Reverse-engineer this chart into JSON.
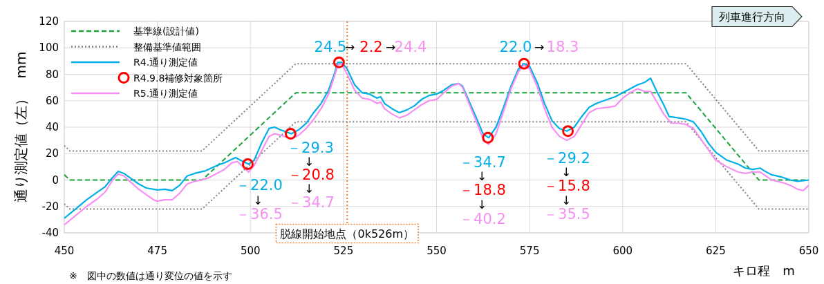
{
  "chart_data": {
    "type": "line",
    "ylabel": "通り測定値（左）　mm",
    "xlabel": "キロ程　m",
    "xlim": [
      450,
      650
    ],
    "xticks": [
      450,
      475,
      500,
      525,
      550,
      575,
      600,
      625,
      650
    ],
    "ylim": [
      -40,
      120
    ],
    "yticks": [
      -40,
      -20,
      0,
      20,
      40,
      60,
      80,
      100,
      120
    ],
    "grid": true,
    "legend": "top left",
    "series": [
      {
        "name": "基準線(設計値)",
        "type": "line",
        "color": "#1aa33a",
        "line_style": "dashed",
        "x": [
          450,
          451.5,
          487,
          512.2,
          617,
          636.6,
          650
        ],
        "values": [
          4,
          0,
          0,
          66,
          66,
          0,
          0
        ]
      },
      {
        "name": "整備基準値範囲",
        "type": "line",
        "color": "#808080",
        "line_style": "dotted",
        "x": [
          450,
          451.5,
          487,
          512.2,
          617,
          636.6,
          650
        ],
        "values": [
          26,
          22,
          22,
          88,
          88,
          22,
          22
        ]
      },
      {
        "type": "line",
        "color": "#808080",
        "line_style": "dotted",
        "x": [
          450,
          451.5,
          487,
          512.2,
          617,
          636.6,
          650
        ],
        "values": [
          -18,
          -22,
          -22,
          44,
          44,
          -22,
          -22
        ]
      },
      {
        "name": "R4.通り測定値",
        "type": "line",
        "color": "#00aee8",
        "line_style": "solid",
        "x": [
          450,
          453,
          456,
          459,
          461,
          463,
          464.5,
          466,
          468,
          470,
          472,
          475,
          477,
          479,
          481,
          483,
          485,
          488,
          491,
          493,
          496,
          498,
          499.5,
          501,
          503,
          505,
          506.5,
          508,
          510,
          511,
          513,
          515,
          517,
          519,
          521,
          522.5,
          523.5,
          524.5,
          526,
          528,
          530,
          532,
          534,
          535,
          536,
          538,
          540,
          542,
          544,
          546,
          548,
          550,
          552,
          554,
          556,
          557,
          559,
          561,
          562.5,
          564,
          566,
          568,
          570,
          572,
          573.5,
          575,
          577,
          579,
          581,
          583,
          585,
          587,
          589,
          591,
          593,
          596,
          598,
          600,
          602,
          604,
          606,
          607.5,
          609,
          611,
          612.5,
          615,
          617,
          619,
          621,
          623,
          625,
          628,
          631,
          633,
          635,
          637,
          638,
          640,
          643,
          645,
          647,
          650
        ],
        "values": [
          -29,
          -22,
          -15,
          -9,
          -5,
          2,
          6.5,
          5,
          1,
          -3,
          -6,
          -7.5,
          -7,
          -8,
          -4,
          3,
          5,
          7,
          11,
          13,
          17,
          14,
          12,
          15,
          28,
          39,
          40,
          38,
          36,
          35,
          38,
          43,
          51,
          58,
          68,
          80,
          89,
          89,
          84,
          72,
          66,
          65,
          62,
          63,
          58,
          54,
          51,
          53,
          56,
          61,
          64,
          65,
          68,
          72,
          73,
          71,
          58,
          45,
          35,
          32,
          40,
          55,
          71,
          84,
          88,
          86,
          74,
          58,
          45,
          39,
          37,
          40,
          48,
          55,
          58,
          61,
          63,
          66,
          69,
          72,
          74,
          77,
          68,
          57,
          48,
          47,
          46,
          44,
          37,
          28,
          21,
          15,
          12,
          9,
          8,
          9,
          7,
          4,
          2,
          0,
          -1,
          0
        ]
      },
      {
        "name": "R4.9.8補修対象箇所",
        "type": "scatter",
        "color": "#ff0000",
        "marker": "circle",
        "x": [
          499.3,
          510.8,
          523.8,
          563.8,
          573.5,
          585.3
        ],
        "values": [
          12,
          35,
          89,
          32,
          88,
          37
        ]
      },
      {
        "name": "R5.通り測定値",
        "type": "line",
        "color": "#f78ff2",
        "line_style": "solid",
        "x": [
          450,
          453,
          456,
          459,
          461,
          463,
          464.5,
          466,
          468,
          470,
          472,
          474,
          475,
          477,
          479,
          481,
          483,
          485,
          487,
          489,
          491,
          493,
          495,
          496.5,
          498,
          499.5,
          501,
          503,
          505,
          506.5,
          508,
          510,
          511,
          513,
          515,
          517,
          519,
          521,
          522.5,
          523.5,
          524.5,
          526,
          528,
          530,
          532,
          534,
          535,
          536,
          538,
          540,
          542,
          544,
          546,
          548,
          550,
          552,
          554,
          556,
          557,
          559,
          561,
          562.5,
          564,
          566,
          568,
          570,
          572,
          573.5,
          575,
          577,
          579,
          581,
          583,
          585,
          587,
          589,
          591,
          593,
          596,
          598,
          600,
          602,
          604,
          606,
          607.5,
          609,
          611,
          613,
          615,
          617,
          619,
          621,
          623,
          625,
          628,
          631,
          633,
          635,
          637,
          638,
          640,
          643,
          645,
          647,
          648.5,
          650
        ],
        "values": [
          -34,
          -27,
          -20,
          -14,
          -9,
          0,
          4.5,
          3,
          -2,
          -7,
          -11,
          -15,
          -16,
          -15,
          -15,
          -10,
          -3,
          -1,
          0,
          2,
          5,
          8,
          13,
          14,
          10,
          6,
          11,
          22,
          33,
          35,
          34,
          32,
          31,
          34,
          39,
          46,
          54,
          65,
          78,
          87,
          88,
          80,
          68,
          62,
          61,
          58,
          59,
          54,
          50,
          47,
          49,
          53,
          57,
          60,
          61,
          66,
          71,
          73,
          70,
          56,
          42,
          31,
          27,
          35,
          52,
          69,
          82,
          87,
          84,
          71,
          54,
          40,
          33,
          30,
          33,
          42,
          51,
          54,
          55,
          56,
          62,
          66,
          69,
          67,
          67,
          60,
          50,
          43,
          43,
          42,
          39,
          31,
          23,
          15,
          10,
          6,
          5,
          6,
          6,
          4,
          0,
          -2,
          -4,
          -7,
          -8,
          -4
        ]
      }
    ],
    "ref_lines": [
      {
        "axis": "x",
        "value": 526,
        "label": "脱線開始地点（0k526m）",
        "color": "#ed7d31",
        "line_style": "dotted"
      }
    ],
    "annotations": [
      "列車進行方向",
      "※　図中の数値は通り変位の値を示す",
      "－22.0",
      "↓",
      "－36.5",
      "－29.3",
      "↓",
      "－20.8",
      "↓",
      "－34.7",
      "24.5",
      "→",
      "2.2",
      "→",
      "24.4",
      "22.0",
      "→",
      "18.3",
      "－34.7",
      "↓",
      "－18.8",
      "↓",
      "－40.2",
      "－29.2",
      "↓",
      "－15.8",
      "↓",
      "－35.5"
    ]
  }
}
